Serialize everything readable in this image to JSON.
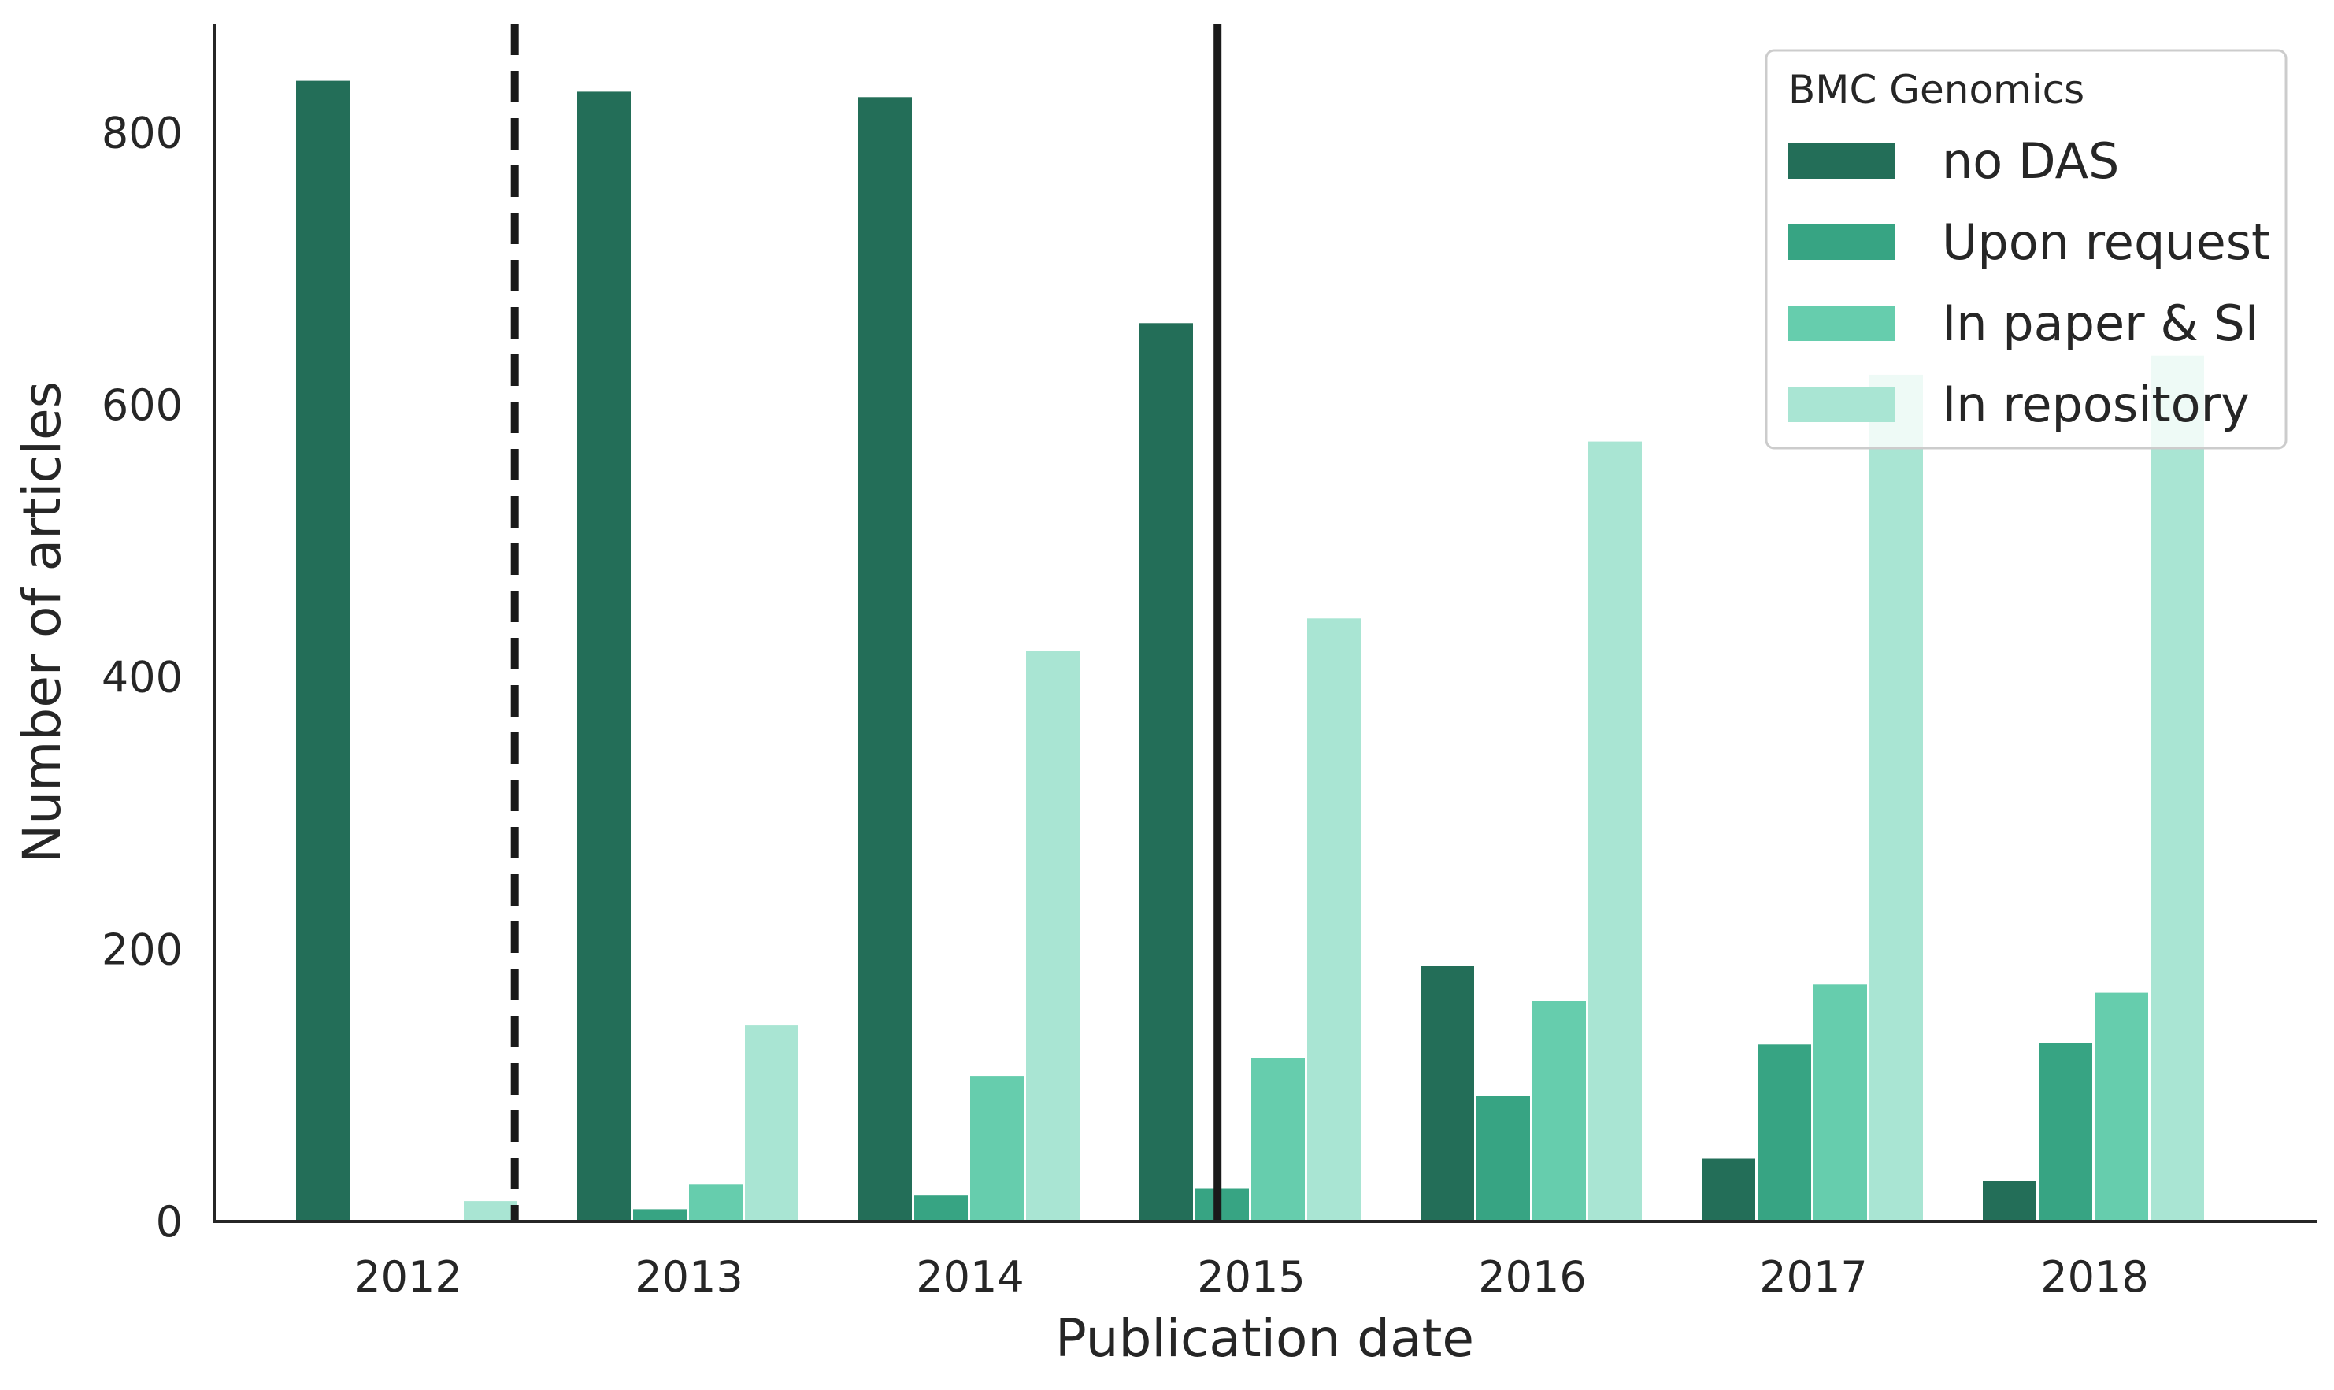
{
  "chart_data": {
    "type": "bar",
    "title": "",
    "xlabel": "Publication date",
    "ylabel": "Number of articles",
    "categories": [
      "2012",
      "2013",
      "2014",
      "2015",
      "2016",
      "2017",
      "2018"
    ],
    "ylim": [
      0,
      880
    ],
    "yticks": [
      0,
      200,
      400,
      600,
      800
    ],
    "grid": false,
    "legend": {
      "title": "BMC Genomics",
      "position": "top-right"
    },
    "series": [
      {
        "name": "no DAS",
        "color": "#236e58",
        "values": [
          838,
          830,
          826,
          660,
          188,
          46,
          30
        ]
      },
      {
        "name": "Upon request",
        "color": "#37a483",
        "values": [
          0,
          9,
          19,
          24,
          92,
          130,
          131
        ]
      },
      {
        "name": "In paper & SI",
        "color": "#66cdad",
        "values": [
          0,
          27,
          107,
          120,
          162,
          174,
          168
        ]
      },
      {
        "name": "In repository",
        "color": "#a9e5d3",
        "values": [
          15,
          144,
          419,
          443,
          573,
          622,
          636
        ]
      }
    ],
    "reference_lines": [
      {
        "style": "dashed",
        "color": "#1a1a1a",
        "x": 2012.38
      },
      {
        "style": "solid",
        "color": "#1a1a1a",
        "x": 2014.88
      }
    ]
  }
}
